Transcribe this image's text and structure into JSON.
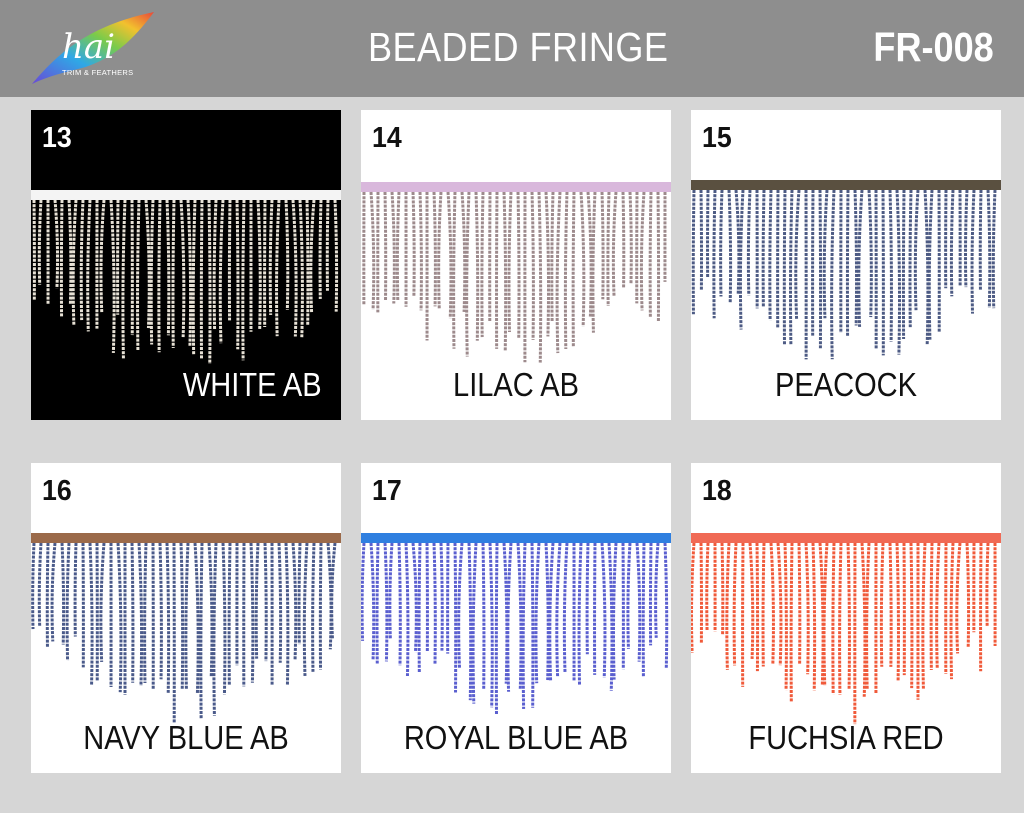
{
  "header": {
    "logo_text": "hai",
    "logo_tagline": "TRIM & FEATHERS",
    "title": "BEADED FRINGE",
    "code": "FR-008"
  },
  "swatches": [
    {
      "number": "13",
      "label": "WHITE AB",
      "bead_color": "#e8e2d6",
      "tape_color": "#f4f4f4",
      "background": "#000000"
    },
    {
      "number": "14",
      "label": "LILAC AB",
      "bead_color": "#9d8a8c",
      "tape_color": "#d9b8dc",
      "background": "#ffffff"
    },
    {
      "number": "15",
      "label": "PEACOCK",
      "bead_color": "#4d5b84",
      "tape_color": "#5a5040",
      "background": "#ffffff"
    },
    {
      "number": "16",
      "label": "NAVY BLUE AB",
      "bead_color": "#4a5a8a",
      "tape_color": "#9b6a4a",
      "background": "#ffffff"
    },
    {
      "number": "17",
      "label": "ROYAL BLUE AB",
      "bead_color": "#5a5fcf",
      "tape_color": "#2f7fe0",
      "background": "#ffffff"
    },
    {
      "number": "18",
      "label": "FUCHSIA RED",
      "bead_color": "#f05a3a",
      "tape_color": "#f06a55",
      "background": "#ffffff"
    }
  ]
}
